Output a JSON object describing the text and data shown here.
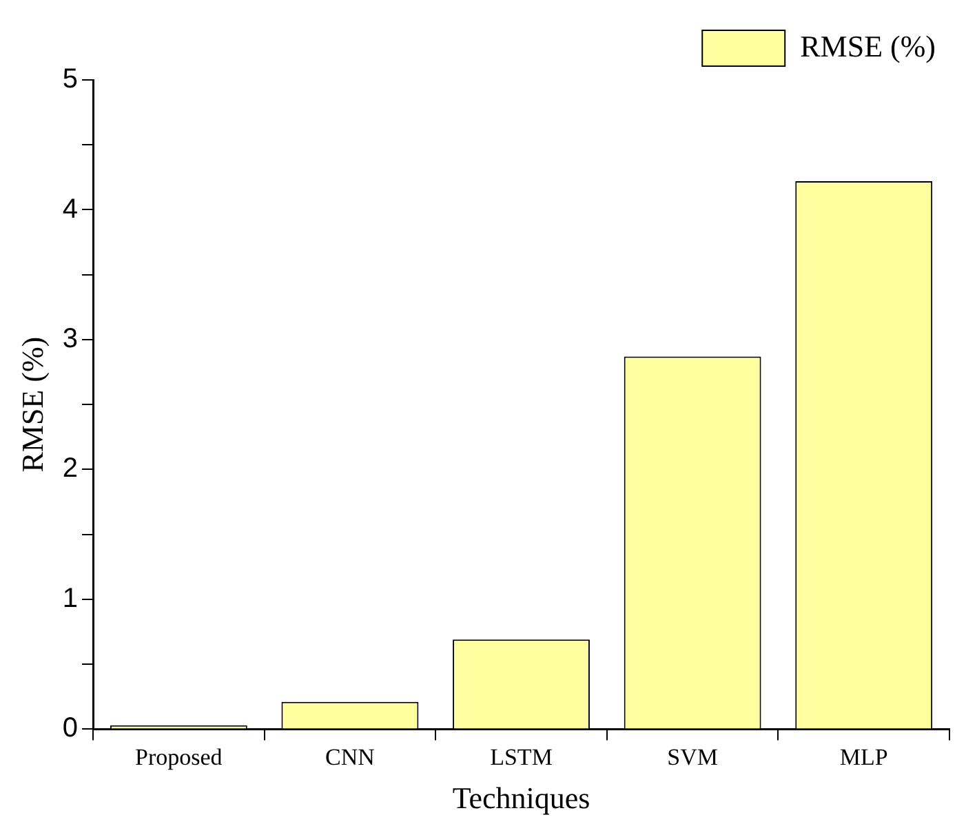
{
  "chart_data": {
    "type": "bar",
    "xlabel": "Techniques",
    "ylabel": "RMSE (%)",
    "categories": [
      "Proposed",
      "CNN",
      "LSTM",
      "SVM",
      "MLP"
    ],
    "series": [
      {
        "name": "RMSE (%)",
        "color": "#ffffa0",
        "values": [
          0.03,
          0.21,
          0.69,
          2.87,
          4.22
        ]
      }
    ],
    "ylim": [
      0,
      5
    ],
    "yticks": [
      0,
      {
        "value": 0.5,
        "label": null
      },
      1,
      {
        "value": 1.5,
        "label": null
      },
      2,
      {
        "value": 2.5,
        "label": null
      },
      3,
      {
        "value": 3.5,
        "label": null
      },
      4,
      {
        "value": 4.5,
        "label": null
      },
      5
    ],
    "grid": false,
    "legend": "top right"
  }
}
